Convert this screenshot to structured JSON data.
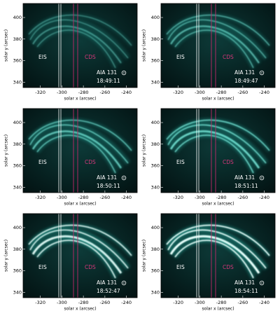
{
  "x_axis": {
    "label": "solar x (arcsec)",
    "xlim": [
      -336,
      -230
    ],
    "ticks": [
      -320,
      -300,
      -280,
      -260,
      -240
    ]
  },
  "y_axis": {
    "label": "solar y (arcsec)",
    "ylim": [
      335,
      413
    ],
    "ticks": [
      340,
      360,
      380,
      400
    ]
  },
  "slits": {
    "eis": "EIS",
    "cds": "CDS"
  },
  "instrument": "AIA 131",
  "panels": [
    {
      "time": "18:49:11"
    },
    {
      "time": "18:49:47"
    },
    {
      "time": "18:50:11"
    },
    {
      "time": "18:51:11"
    },
    {
      "time": "18:52:47"
    },
    {
      "time": "18:54:11"
    }
  ]
}
